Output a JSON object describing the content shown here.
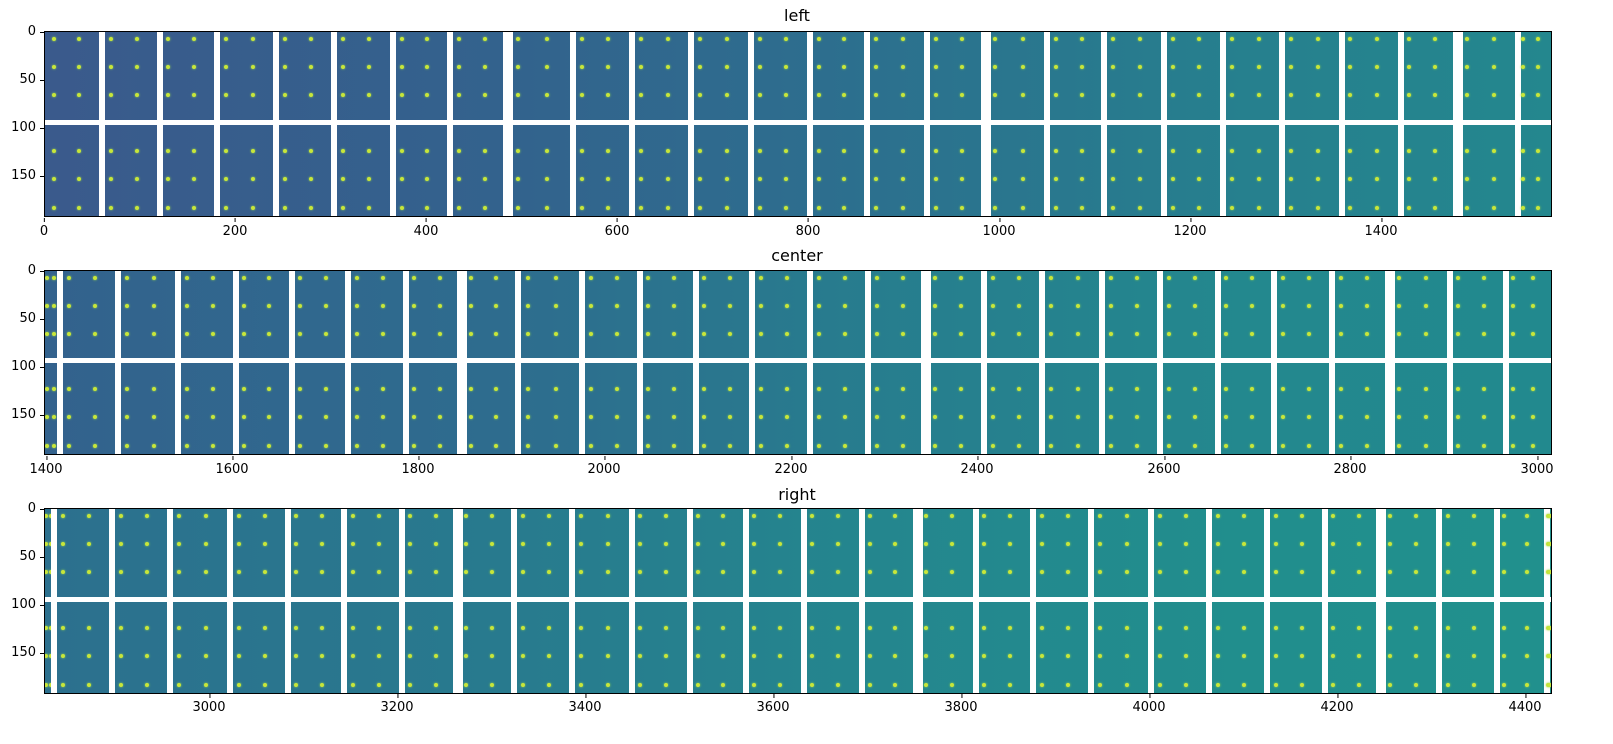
{
  "chart_data": [
    {
      "type": "heatmap",
      "title": "left",
      "xlabel": "",
      "ylabel": "",
      "xlim": [
        0,
        1575
      ],
      "ylim": [
        195,
        0
      ],
      "xticks": [
        0,
        200,
        400,
        600,
        800,
        1000,
        1200,
        1400
      ],
      "yticks": [
        0,
        50,
        100,
        150
      ],
      "colormap": "viridis",
      "description": "Mosaic of detector tiles with regular grid of bright calibration spots; background shifts from dark blue (left) to teal-green (right); white gaps separate tiles; a horizontal white gap near y≈96",
      "gap_row_y": 96,
      "tile_boundaries_x": [
        60,
        120,
        180,
        242,
        302,
        364,
        424,
        484,
        552,
        614,
        676,
        738,
        800,
        860,
        922,
        984,
        1048,
        1108,
        1170,
        1232,
        1294,
        1356,
        1418,
        1478,
        1540
      ]
    },
    {
      "type": "heatmap",
      "title": "center",
      "xlabel": "",
      "ylabel": "",
      "xlim": [
        1400,
        3010
      ],
      "ylim": [
        195,
        0
      ],
      "xticks": [
        1400,
        1600,
        1800,
        2000,
        2200,
        2400,
        2600,
        2800,
        3000
      ],
      "yticks": [
        0,
        50,
        100,
        150
      ],
      "colormap": "viridis",
      "gap_row_y": 96,
      "tile_boundaries_x": [
        1416,
        1478,
        1542,
        1604,
        1664,
        1724,
        1786,
        1846,
        1906,
        1974,
        2036,
        2096,
        2156,
        2218,
        2280,
        2342,
        2404,
        2466,
        2530,
        2592,
        2654,
        2714,
        2776,
        2838,
        2902,
        2962
      ]
    },
    {
      "type": "heatmap",
      "title": "right",
      "xlabel": "",
      "ylabel": "",
      "xlim": [
        2828,
        4440
      ],
      "ylim": [
        195,
        0
      ],
      "xticks": [
        3000,
        3200,
        3400,
        3600,
        3800,
        4000,
        4200,
        4400
      ],
      "yticks": [
        0,
        50,
        100,
        150
      ],
      "colormap": "viridis",
      "gap_row_y": 96,
      "tile_boundaries_x": [
        2838,
        2900,
        2962,
        3026,
        3088,
        3148,
        3210,
        3270,
        3330,
        3392,
        3456,
        3518,
        3578,
        3640,
        3702,
        3762,
        3824,
        3886,
        3948,
        4012,
        4074,
        4136,
        4198,
        4258,
        4320,
        4382,
        4436
      ]
    }
  ],
  "panels": {
    "left": {
      "title": "left",
      "yticks": [
        "0",
        "50",
        "100",
        "150"
      ],
      "xticks": [
        "0",
        "200",
        "400",
        "600",
        "800",
        "1000",
        "1200",
        "1400"
      ]
    },
    "center": {
      "title": "center",
      "yticks": [
        "0",
        "50",
        "100",
        "150"
      ],
      "xticks": [
        "1400",
        "1600",
        "1800",
        "2000",
        "2200",
        "2400",
        "2600",
        "2800",
        "3000"
      ]
    },
    "right": {
      "title": "right",
      "yticks": [
        "0",
        "50",
        "100",
        "150"
      ],
      "xticks": [
        "3000",
        "3200",
        "3400",
        "3600",
        "3800",
        "4000",
        "4200",
        "4400"
      ]
    }
  },
  "colors": {
    "left_start": "#3a5a8c",
    "left_end": "#26878e",
    "center_start": "#33628d",
    "center_end": "#22898e",
    "right_start": "#2c708e",
    "right_end": "#21908d",
    "spot": "#c8e63a",
    "gap": "#ffffff"
  }
}
